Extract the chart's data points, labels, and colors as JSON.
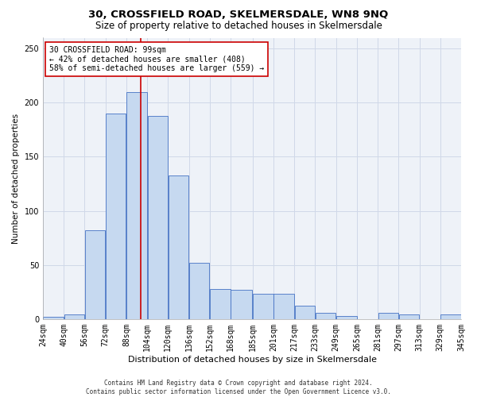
{
  "title": "30, CROSSFIELD ROAD, SKELMERSDALE, WN8 9NQ",
  "subtitle": "Size of property relative to detached houses in Skelmersdale",
  "xlabel": "Distribution of detached houses by size in Skelmersdale",
  "ylabel": "Number of detached properties",
  "footer_line1": "Contains HM Land Registry data © Crown copyright and database right 2024.",
  "footer_line2": "Contains public sector information licensed under the Open Government Licence v3.0.",
  "annotation_line1": "30 CROSSFIELD ROAD: 99sqm",
  "annotation_line2": "← 42% of detached houses are smaller (408)",
  "annotation_line3": "58% of semi-detached houses are larger (559) →",
  "property_size": 99,
  "bin_edges": [
    24,
    40,
    56,
    72,
    88,
    104,
    120,
    136,
    152,
    168,
    185,
    201,
    217,
    233,
    249,
    265,
    281,
    297,
    313,
    329,
    345
  ],
  "bin_labels": [
    "24sqm",
    "40sqm",
    "56sqm",
    "72sqm",
    "88sqm",
    "104sqm",
    "120sqm",
    "136sqm",
    "152sqm",
    "168sqm",
    "185sqm",
    "201sqm",
    "217sqm",
    "233sqm",
    "249sqm",
    "265sqm",
    "281sqm",
    "297sqm",
    "313sqm",
    "329sqm",
    "345sqm"
  ],
  "counts": [
    2,
    4,
    82,
    190,
    210,
    188,
    133,
    52,
    28,
    27,
    23,
    23,
    12,
    6,
    3,
    0,
    6,
    4,
    0,
    4
  ],
  "bar_facecolor": "#c6d9f0",
  "bar_edgecolor": "#4472c4",
  "redline_color": "#cc0000",
  "grid_color": "#d0d8e8",
  "background_color": "#eef2f8",
  "annotation_box_edgecolor": "#cc0000",
  "ylim": [
    0,
    260
  ],
  "title_fontsize": 9.5,
  "subtitle_fontsize": 8.5,
  "xlabel_fontsize": 8,
  "ylabel_fontsize": 7.5,
  "tick_fontsize": 7,
  "annotation_fontsize": 7,
  "footer_fontsize": 5.5
}
